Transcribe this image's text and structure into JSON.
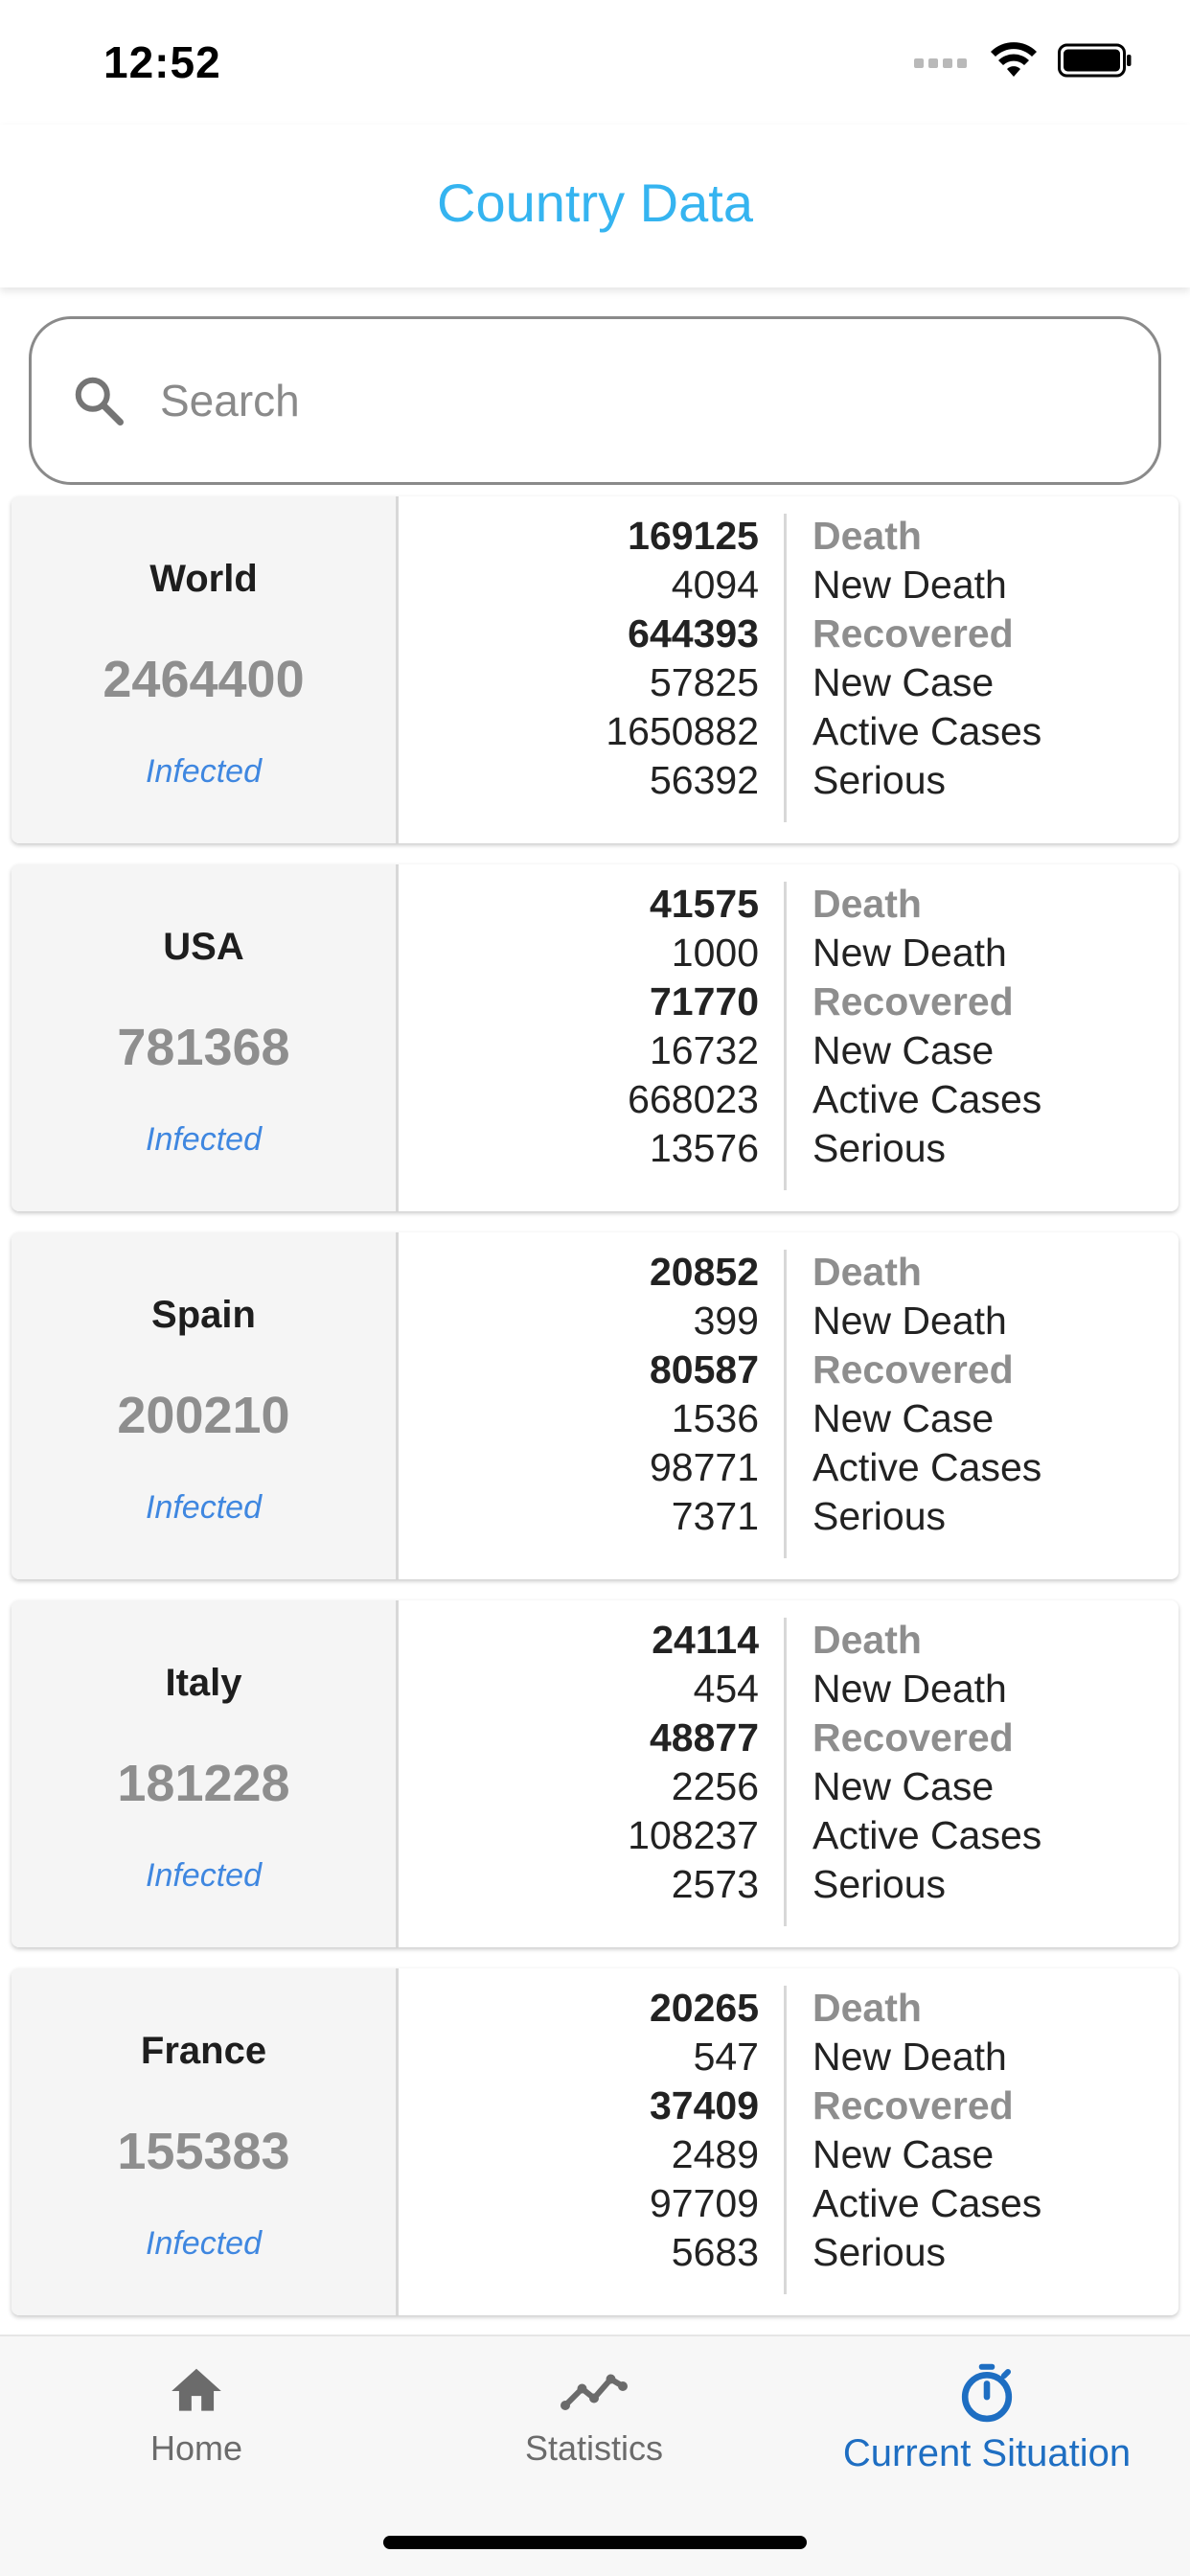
{
  "status_bar": {
    "time": "12:52"
  },
  "app_bar": {
    "title": "Country Data"
  },
  "search": {
    "placeholder": "Search",
    "value": ""
  },
  "stat_labels": [
    "Death",
    "New Death",
    "Recovered",
    "New Case",
    "Active Cases",
    "Serious"
  ],
  "countries": [
    {
      "name": "World",
      "infected": "2464400",
      "infected_label": "Infected",
      "death": "169125",
      "new_death": "4094",
      "recovered": "644393",
      "new_case": "57825",
      "active_cases": "1650882",
      "serious": "56392"
    },
    {
      "name": "USA",
      "infected": "781368",
      "infected_label": "Infected",
      "death": "41575",
      "new_death": "1000",
      "recovered": "71770",
      "new_case": "16732",
      "active_cases": "668023",
      "serious": "13576"
    },
    {
      "name": "Spain",
      "infected": "200210",
      "infected_label": "Infected",
      "death": "20852",
      "new_death": "399",
      "recovered": "80587",
      "new_case": "1536",
      "active_cases": "98771",
      "serious": "7371"
    },
    {
      "name": "Italy",
      "infected": "181228",
      "infected_label": "Infected",
      "death": "24114",
      "new_death": "454",
      "recovered": "48877",
      "new_case": "2256",
      "active_cases": "108237",
      "serious": "2573"
    },
    {
      "name": "France",
      "infected": "155383",
      "infected_label": "Infected",
      "death": "20265",
      "new_death": "547",
      "recovered": "37409",
      "new_case": "2489",
      "active_cases": "97709",
      "serious": "5683"
    }
  ],
  "bottom_nav": {
    "items": [
      {
        "label": "Home",
        "icon": "home-icon",
        "active": false
      },
      {
        "label": "Statistics",
        "icon": "line-chart-icon",
        "active": false
      },
      {
        "label": "Current Situation",
        "icon": "timer-icon",
        "active": true
      }
    ]
  },
  "colors": {
    "title": "#35b4f0",
    "active_nav": "#1e6ec2",
    "infected_label": "#3f87e0",
    "muted": "#8e8e8e"
  }
}
